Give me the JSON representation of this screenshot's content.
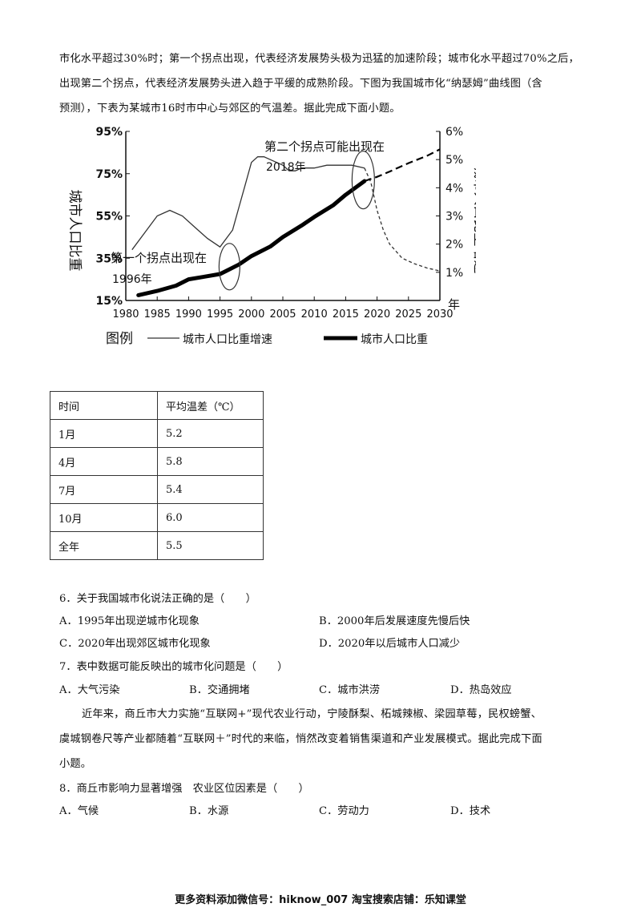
{
  "intro": {
    "line1": "市化水平超过30%时；第一个拐点出现，代表经济发展势头极为迅猛的加速阶段；城市化水平超过70%之后，",
    "line2": "出现第二个拐点，代表经济发展势头进入趋于平缓的成熟阶段。下图为我国城市化“纳瑟姆”曲线图（含",
    "line3": "预测），下表为某城市16时市中心与郊区的气温差。据此完成下面小题。"
  },
  "chart_data": {
    "type": "line",
    "x_ticks": [
      "1980",
      "1985",
      "1990",
      "1995",
      "2000",
      "2005",
      "2010",
      "2015",
      "2020",
      "2025",
      "2030"
    ],
    "left_ticks": [
      "95%",
      "75%",
      "55%",
      "35%",
      "15%"
    ],
    "right_ticks": [
      "6%",
      "5%",
      "4%",
      "3%",
      "2%",
      "1%"
    ],
    "right_unit": "年",
    "left_label": "城市人口比重",
    "right_label": "城市人口比重增速",
    "annotation1": "第一个拐点出现在",
    "annotation1_year": "1996年",
    "annotation2": "第二个拐点可能出现在",
    "annotation2_year": "2018年",
    "legend_title": "图例",
    "series": [
      {
        "name": "城市人口比重增速",
        "axis": "right",
        "x": [
          1981,
          1983,
          1985,
          1987,
          1989,
          1991,
          1993,
          1995,
          1997,
          1998,
          1999,
          2000,
          2001,
          2002,
          2003,
          2004,
          2005,
          2006,
          2007,
          2008,
          2010,
          2012,
          2014,
          2016,
          2018
        ],
        "y": [
          1.8,
          2.4,
          3.0,
          3.2,
          3.0,
          2.6,
          2.2,
          1.9,
          2.5,
          3.3,
          4.1,
          4.9,
          5.1,
          5.1,
          5.0,
          4.9,
          4.8,
          4.6,
          4.6,
          4.7,
          4.7,
          4.8,
          4.8,
          4.8,
          4.7
        ],
        "forecast_x": [
          2018,
          2019,
          2020,
          2021,
          2022,
          2024,
          2026,
          2028,
          2030
        ],
        "forecast_y": [
          4.7,
          4.2,
          3.2,
          2.5,
          2.0,
          1.5,
          1.3,
          1.15,
          1.05
        ]
      },
      {
        "name": "城市人口比重",
        "axis": "left",
        "x": [
          1982,
          1985,
          1988,
          1990,
          1993,
          1995,
          1996,
          1998,
          2000,
          2003,
          2005,
          2008,
          2010,
          2013,
          2015,
          2018
        ],
        "y": [
          17.5,
          19.5,
          22,
          25,
          26.5,
          27.5,
          29,
          32,
          36,
          40.5,
          45,
          50.5,
          54.5,
          60,
          65,
          71.5
        ],
        "forecast_x": [
          2018,
          2020,
          2022,
          2025,
          2028,
          2030
        ],
        "forecast_y": [
          71.5,
          73.5,
          76,
          80,
          83.5,
          86.5
        ]
      }
    ],
    "xlim": [
      1980,
      2030
    ],
    "ylim_left": [
      15,
      95
    ],
    "ylim_right": [
      0,
      6
    ]
  },
  "table": {
    "headers": [
      "时间",
      "平均温差（℃）"
    ],
    "rows": [
      [
        "1月",
        "5.2"
      ],
      [
        "4月",
        "5.8"
      ],
      [
        "7月",
        "5.4"
      ],
      [
        "10月",
        "6.0"
      ],
      [
        "全年",
        "5.5"
      ]
    ]
  },
  "questions": [
    {
      "stem": "6．关于我国城市化说法正确的是（　　）",
      "options": [
        "A．1995年出现逆城市化现象",
        "B．2000年后发展速度先慢后快",
        "C．2020年出现郊区城市化现象",
        "D．2020年以后城市人口减少"
      ]
    },
    {
      "stem": "7．表中数据可能反映出的城市化问题是（　　）",
      "options": [
        "A．大气污染",
        "B．交通拥堵",
        "C．城市洪涝",
        "D．热岛效应"
      ]
    },
    {
      "stem": "8．商丘市影响力显著增强　农业区位因素是（　　）",
      "options": [
        "A．气候",
        "B．水源",
        "C．劳动力",
        "D．技术"
      ]
    }
  ],
  "passage2": {
    "line1": "近年来，商丘市大力实施“互联网+”现代农业行动，宁陵酥梨、柘城辣椒、梁园草莓，民权螃蟹、",
    "line2": "虞城钢卷尺等产业都随着“互联网＋”时代的来临，悄然改变着销售渠道和产业发展模式。据此完成下面",
    "line3": "小题。"
  },
  "footer": "更多资料添加微信号：hiknow_007 淘宝搜索店铺：乐知课堂"
}
